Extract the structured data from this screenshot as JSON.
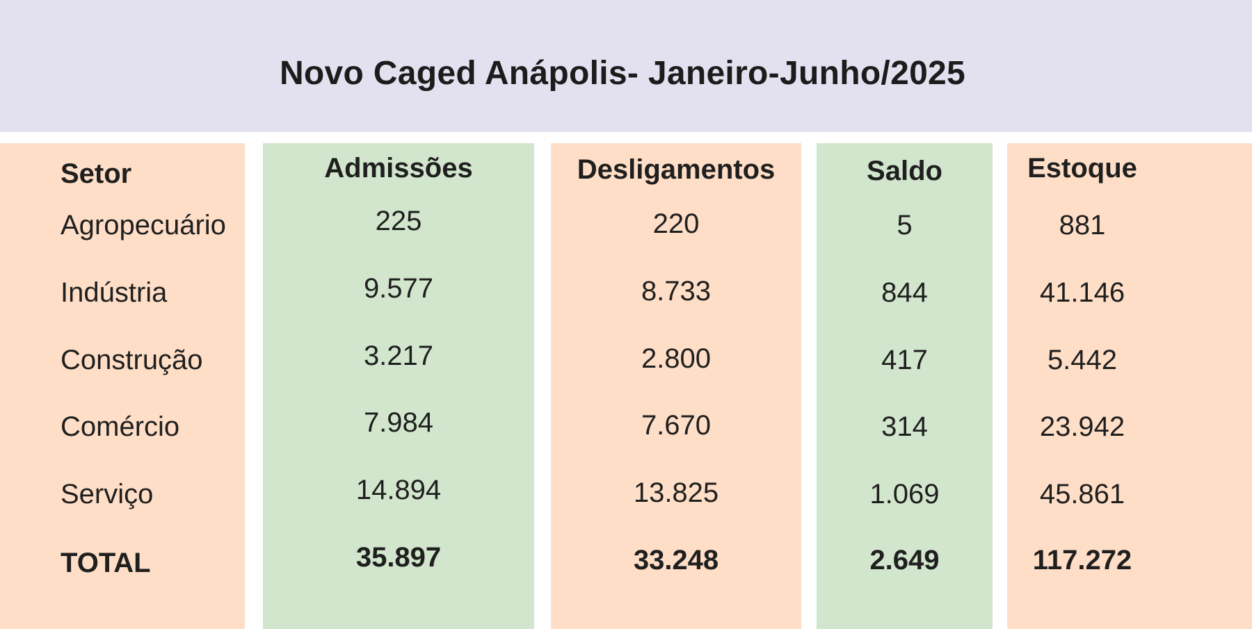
{
  "chart_data": {
    "type": "table",
    "title": "Novo Caged Anápolis- Janeiro-Junho/2025",
    "columns": [
      "Setor",
      "Admissões",
      "Desligamentos",
      "Saldo",
      "Estoque"
    ],
    "rows": [
      {
        "setor": "Agropecuário",
        "values": [
          "225",
          "220",
          "5",
          "881"
        ]
      },
      {
        "setor": "Indústria",
        "values": [
          "9.577",
          "8.733",
          "844",
          "41.146"
        ]
      },
      {
        "setor": "Construção",
        "values": [
          "3.217",
          "2.800",
          "417",
          "5.442"
        ]
      },
      {
        "setor": "Comércio",
        "values": [
          "7.984",
          "7.670",
          "314",
          "23.942"
        ]
      },
      {
        "setor": "Serviço",
        "values": [
          "14.894",
          "13.825",
          "1.069",
          "45.861"
        ]
      }
    ],
    "total": {
      "setor": "TOTAL",
      "values": [
        "35.897",
        "33.248",
        "2.649",
        "117.272"
      ]
    }
  },
  "colors": {
    "header_background": "#e3e1ef",
    "peach_column": "#fedec6",
    "green_column": "#d1e6cc"
  }
}
